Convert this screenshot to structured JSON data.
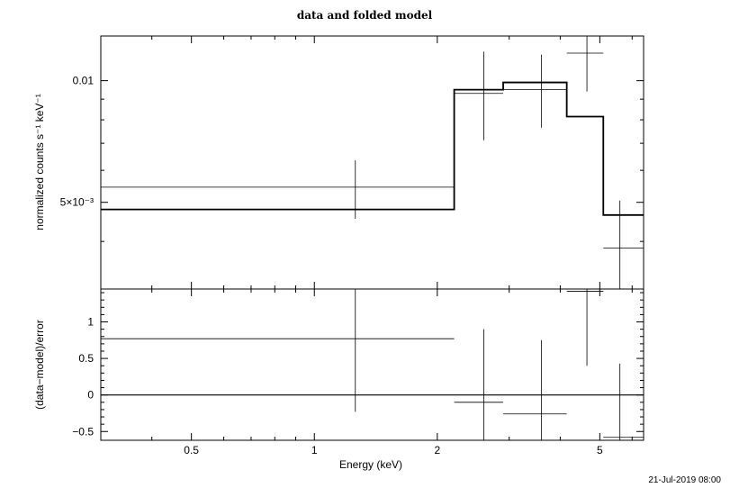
{
  "chart_data": {
    "type": "scatter",
    "title": "data and folded model",
    "xlabel": "Energy (keV)",
    "x_scale": "log",
    "xlim": [
      0.3,
      6.4
    ],
    "x_ticks": [
      0.5,
      1,
      2,
      5
    ],
    "x_tick_labels": [
      "0.5",
      "1",
      "2",
      "5"
    ],
    "timestamp": "21-Jul-2019 08:00",
    "panels": [
      {
        "name": "data",
        "ylabel": "normalized counts s⁻¹ keV⁻¹",
        "y_scale": "log",
        "ylim": [
          0.00305,
          0.0129
        ],
        "y_ticks": [
          0.005,
          0.01
        ],
        "y_tick_labels": [
          "5×10⁻³",
          "0.01"
        ],
        "data": [
          {
            "x_lo": 0.3,
            "x_hi": 2.2,
            "x": 1.26,
            "y": 0.00545,
            "y_lo": 0.00455,
            "y_hi": 0.00635
          },
          {
            "x_lo": 2.2,
            "x_hi": 2.9,
            "x": 2.6,
            "y": 0.0093,
            "y_lo": 0.00712,
            "y_hi": 0.0118
          },
          {
            "x_lo": 2.9,
            "x_hi": 4.15,
            "x": 3.6,
            "y": 0.0095,
            "y_lo": 0.00765,
            "y_hi": 0.0116
          },
          {
            "x_lo": 4.15,
            "x_hi": 5.1,
            "x": 4.65,
            "y": 0.0117,
            "y_lo": 0.0094,
            "y_hi": 0.0132
          },
          {
            "x_lo": 5.1,
            "x_hi": 6.4,
            "x": 5.6,
            "y": 0.00385,
            "y_lo": 0.00305,
            "y_hi": 0.00505
          }
        ],
        "model": [
          {
            "x_lo": 0.3,
            "x_hi": 2.2,
            "y": 0.0048
          },
          {
            "x_lo": 2.2,
            "x_hi": 2.9,
            "y": 0.0095
          },
          {
            "x_lo": 2.9,
            "x_hi": 4.15,
            "y": 0.0099
          },
          {
            "x_lo": 4.15,
            "x_hi": 5.1,
            "y": 0.00815
          },
          {
            "x_lo": 5.1,
            "x_hi": 6.4,
            "y": 0.00465
          }
        ]
      },
      {
        "name": "residuals",
        "ylabel": "(data−model)/error",
        "y_scale": "linear",
        "ylim": [
          -0.62,
          1.45
        ],
        "y_ticks": [
          -0.5,
          0,
          0.5,
          1
        ],
        "y_tick_labels": [
          "−0.5",
          "0",
          "0.5",
          "1"
        ],
        "zero_line": 0,
        "data": [
          {
            "x_lo": 0.3,
            "x_hi": 2.2,
            "x": 1.26,
            "y": 0.77,
            "y_lo": -0.23,
            "y_hi": 1.45
          },
          {
            "x_lo": 2.2,
            "x_hi": 2.9,
            "x": 2.6,
            "y": -0.1,
            "y_lo": -0.62,
            "y_hi": 0.9
          },
          {
            "x_lo": 2.9,
            "x_hi": 4.15,
            "x": 3.6,
            "y": -0.26,
            "y_lo": -0.62,
            "y_hi": 0.75
          },
          {
            "x_lo": 4.15,
            "x_hi": 5.1,
            "x": 4.65,
            "y": 1.42,
            "y_lo": 0.4,
            "y_hi": 1.45
          },
          {
            "x_lo": 5.1,
            "x_hi": 6.4,
            "x": 5.6,
            "y": -0.58,
            "y_lo": -0.62,
            "y_hi": 0.43
          }
        ]
      }
    ]
  }
}
